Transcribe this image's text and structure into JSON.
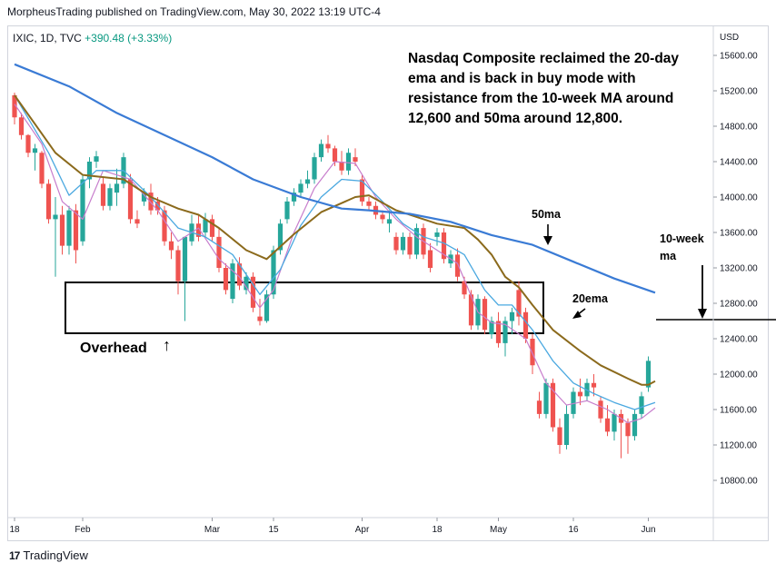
{
  "header": {
    "published": "MorpheusTrading published on TradingView.com, May 30, 2022 13:19 UTC-4"
  },
  "symbol": {
    "ticker": "IXIC, 1D, TVC",
    "change": "+390.48 (+3.33%)"
  },
  "footer": {
    "brand": "TradingView",
    "logo_text": "17"
  },
  "annotations": {
    "main": "Nasdaq Composite reclaimed the 20-day ema and is back in buy mode with resistance from the 10-week MA around 12,600 and 50ma around 12,800.",
    "ma50_label": "50ma",
    "ema20_label": "20ema",
    "weekly_label_1": "10-week",
    "weekly_label_2": "ma",
    "overhead_label": "Overhead",
    "up_arrow": "↑"
  },
  "colors": {
    "up": "#26a69a",
    "down": "#ef5350",
    "ma50": "#3a7bd5",
    "ema20": "#8b6a1c",
    "ema10": "#4aa8e0",
    "ema5": "#c77dcc"
  },
  "chart_data": {
    "type": "candlestick",
    "title": "IXIC, 1D, TVC",
    "currency": "USD",
    "ylim": [
      10400,
      15800
    ],
    "y_ticks": [
      15600,
      15200,
      14800,
      14400,
      14000,
      13600,
      13200,
      12800,
      12400,
      12000,
      11600,
      11200,
      10800
    ],
    "x_ticks": [
      {
        "label": "18",
        "i": 0
      },
      {
        "label": "Feb",
        "i": 10
      },
      {
        "label": "Mar",
        "i": 29
      },
      {
        "label": "15",
        "i": 38
      },
      {
        "label": "Apr",
        "i": 51
      },
      {
        "label": "18",
        "i": 62
      },
      {
        "label": "May",
        "i": 71
      },
      {
        "label": "16",
        "i": 82
      },
      {
        "label": "Jun",
        "i": 93
      }
    ],
    "candles": [
      [
        15150,
        15180,
        14820,
        14900
      ],
      [
        14900,
        14950,
        14650,
        14700
      ],
      [
        14700,
        14710,
        14450,
        14500
      ],
      [
        14500,
        14600,
        14300,
        14550
      ],
      [
        14500,
        14520,
        14100,
        14150
      ],
      [
        14150,
        14200,
        13700,
        13750
      ],
      [
        13750,
        14000,
        13100,
        13800
      ],
      [
        13800,
        13900,
        13350,
        13450
      ],
      [
        13450,
        13900,
        13350,
        13850
      ],
      [
        13850,
        13920,
        13250,
        13400
      ],
      [
        13500,
        14250,
        13450,
        14200
      ],
      [
        14200,
        14450,
        14100,
        14400
      ],
      [
        14400,
        14520,
        14330,
        14460
      ],
      [
        14150,
        14220,
        13850,
        13900
      ],
      [
        13900,
        14150,
        13850,
        14100
      ],
      [
        14050,
        14320,
        13900,
        14150
      ],
      [
        14150,
        14500,
        14100,
        14450
      ],
      [
        14200,
        14260,
        13700,
        13750
      ],
      [
        13750,
        13850,
        13650,
        13700
      ],
      [
        13950,
        14100,
        13900,
        14050
      ],
      [
        14050,
        14150,
        13800,
        13850
      ],
      [
        13950,
        14000,
        13800,
        13850
      ],
      [
        13850,
        13900,
        13450,
        13500
      ],
      [
        13500,
        13600,
        13300,
        13400
      ],
      [
        13400,
        13450,
        12900,
        13050
      ],
      [
        13050,
        13550,
        12600,
        13550
      ],
      [
        13500,
        13800,
        13450,
        13700
      ],
      [
        13700,
        13800,
        13500,
        13550
      ],
      [
        13600,
        13820,
        13550,
        13750
      ],
      [
        13750,
        13800,
        13500,
        13550
      ],
      [
        13550,
        13650,
        13150,
        13200
      ],
      [
        13200,
        13250,
        12900,
        12950
      ],
      [
        12850,
        13300,
        12800,
        13250
      ],
      [
        13250,
        13320,
        12950,
        13000
      ],
      [
        12950,
        13150,
        12900,
        13100
      ],
      [
        13100,
        13150,
        12700,
        12750
      ],
      [
        12650,
        12850,
        12550,
        12600
      ],
      [
        12600,
        12950,
        12580,
        12900
      ],
      [
        12900,
        13450,
        12850,
        13400
      ],
      [
        13400,
        13750,
        13350,
        13700
      ],
      [
        13750,
        14000,
        13700,
        13950
      ],
      [
        13950,
        14100,
        13900,
        14050
      ],
      [
        14050,
        14200,
        14000,
        14150
      ],
      [
        14150,
        14300,
        14100,
        14200
      ],
      [
        14200,
        14500,
        14150,
        14450
      ],
      [
        14450,
        14650,
        14400,
        14600
      ],
      [
        14600,
        14700,
        14500,
        14550
      ],
      [
        14550,
        14580,
        14350,
        14400
      ],
      [
        14400,
        14520,
        14250,
        14300
      ],
      [
        14300,
        14550,
        14250,
        14500
      ],
      [
        14450,
        14550,
        14350,
        14400
      ],
      [
        14200,
        14250,
        13900,
        13950
      ],
      [
        13950,
        14000,
        13850,
        13900
      ],
      [
        13900,
        13950,
        13750,
        13800
      ],
      [
        13800,
        13850,
        13700,
        13750
      ],
      [
        13700,
        13850,
        13600,
        13750
      ],
      [
        13550,
        13600,
        13350,
        13400
      ],
      [
        13400,
        13600,
        13350,
        13550
      ],
      [
        13550,
        13600,
        13300,
        13350
      ],
      [
        13350,
        13700,
        13300,
        13650
      ],
      [
        13650,
        13700,
        13300,
        13350
      ],
      [
        13400,
        13480,
        13150,
        13200
      ],
      [
        13550,
        13650,
        13450,
        13600
      ],
      [
        13600,
        13650,
        13250,
        13300
      ],
      [
        13250,
        13400,
        13200,
        13350
      ],
      [
        13350,
        13420,
        13050,
        13100
      ],
      [
        13050,
        13100,
        12850,
        12900
      ],
      [
        12900,
        12950,
        12500,
        12550
      ],
      [
        12550,
        12900,
        12500,
        12850
      ],
      [
        12850,
        12880,
        12450,
        12500
      ],
      [
        12450,
        12650,
        12400,
        12600
      ],
      [
        12600,
        12700,
        12300,
        12350
      ],
      [
        12350,
        12650,
        12200,
        12600
      ],
      [
        12600,
        12750,
        12450,
        12700
      ],
      [
        12950,
        13050,
        12550,
        12650
      ],
      [
        12700,
        12750,
        12350,
        12400
      ],
      [
        12400,
        12450,
        12000,
        12100
      ],
      [
        11700,
        11800,
        11500,
        11550
      ],
      [
        11550,
        11950,
        11500,
        11900
      ],
      [
        11900,
        11950,
        11350,
        11400
      ],
      [
        11400,
        11500,
        11100,
        11200
      ],
      [
        11200,
        11650,
        11150,
        11550
      ],
      [
        11550,
        11850,
        11500,
        11800
      ],
      [
        11800,
        11950,
        11650,
        11750
      ],
      [
        11750,
        11950,
        11700,
        11900
      ],
      [
        11900,
        12000,
        11750,
        11850
      ],
      [
        11700,
        11750,
        11450,
        11500
      ],
      [
        11500,
        11650,
        11300,
        11350
      ],
      [
        11350,
        11600,
        11250,
        11550
      ],
      [
        11550,
        11600,
        11050,
        11450
      ],
      [
        11450,
        11500,
        11100,
        11300
      ],
      [
        11300,
        11600,
        11250,
        11550
      ],
      [
        11550,
        11800,
        11500,
        11750
      ],
      [
        11850,
        12200,
        11800,
        12150
      ]
    ],
    "ma50": [
      [
        0,
        15500
      ],
      [
        8,
        15250
      ],
      [
        15,
        14950
      ],
      [
        22,
        14700
      ],
      [
        29,
        14450
      ],
      [
        35,
        14200
      ],
      [
        42,
        14000
      ],
      [
        48,
        13870
      ],
      [
        52,
        13850
      ],
      [
        58,
        13810
      ],
      [
        64,
        13720
      ],
      [
        70,
        13570
      ],
      [
        76,
        13460
      ],
      [
        82,
        13270
      ],
      [
        88,
        13080
      ],
      [
        94,
        12920
      ]
    ],
    "ema20": [
      [
        0,
        15150
      ],
      [
        6,
        14500
      ],
      [
        10,
        14250
      ],
      [
        16,
        14200
      ],
      [
        20,
        14000
      ],
      [
        24,
        13870
      ],
      [
        27,
        13800
      ],
      [
        30,
        13650
      ],
      [
        34,
        13400
      ],
      [
        37,
        13300
      ],
      [
        41,
        13580
      ],
      [
        45,
        13830
      ],
      [
        50,
        14000
      ],
      [
        52,
        14020
      ],
      [
        56,
        13850
      ],
      [
        62,
        13700
      ],
      [
        66,
        13650
      ],
      [
        68,
        13520
      ],
      [
        70,
        13350
      ],
      [
        72,
        13100
      ],
      [
        74,
        12980
      ],
      [
        76,
        12780
      ],
      [
        79,
        12500
      ],
      [
        83,
        12260
      ],
      [
        86,
        12100
      ],
      [
        90,
        11950
      ],
      [
        92,
        11880
      ],
      [
        93,
        11880
      ],
      [
        94,
        11920
      ]
    ],
    "ema10": [
      [
        0,
        15150
      ],
      [
        5,
        14500
      ],
      [
        8,
        14020
      ],
      [
        12,
        14300
      ],
      [
        16,
        14300
      ],
      [
        20,
        14000
      ],
      [
        24,
        13650
      ],
      [
        28,
        13550
      ],
      [
        32,
        13350
      ],
      [
        36,
        12900
      ],
      [
        39,
        13180
      ],
      [
        42,
        13680
      ],
      [
        45,
        14000
      ],
      [
        48,
        14200
      ],
      [
        51,
        14180
      ],
      [
        54,
        13950
      ],
      [
        57,
        13700
      ],
      [
        60,
        13550
      ],
      [
        63,
        13480
      ],
      [
        66,
        13350
      ],
      [
        69,
        12950
      ],
      [
        71,
        12780
      ],
      [
        73,
        12780
      ],
      [
        76,
        12500
      ],
      [
        79,
        12150
      ],
      [
        82,
        11900
      ],
      [
        85,
        11780
      ],
      [
        88,
        11680
      ],
      [
        91,
        11600
      ],
      [
        94,
        11680
      ]
    ],
    "ema5": [
      [
        0,
        15050
      ],
      [
        4,
        14600
      ],
      [
        7,
        13950
      ],
      [
        10,
        13750
      ],
      [
        13,
        14300
      ],
      [
        17,
        14200
      ],
      [
        21,
        13850
      ],
      [
        24,
        13500
      ],
      [
        27,
        13650
      ],
      [
        30,
        13300
      ],
      [
        33,
        13100
      ],
      [
        36,
        12750
      ],
      [
        38,
        12950
      ],
      [
        41,
        13600
      ],
      [
        44,
        14100
      ],
      [
        47,
        14400
      ],
      [
        50,
        14380
      ],
      [
        53,
        14000
      ],
      [
        56,
        13750
      ],
      [
        59,
        13550
      ],
      [
        62,
        13400
      ],
      [
        65,
        13250
      ],
      [
        68,
        12700
      ],
      [
        70,
        12580
      ],
      [
        72,
        12560
      ],
      [
        75,
        12400
      ],
      [
        78,
        11900
      ],
      [
        81,
        11650
      ],
      [
        84,
        11700
      ],
      [
        87,
        11600
      ],
      [
        90,
        11450
      ],
      [
        92,
        11500
      ],
      [
        94,
        11620
      ]
    ]
  }
}
